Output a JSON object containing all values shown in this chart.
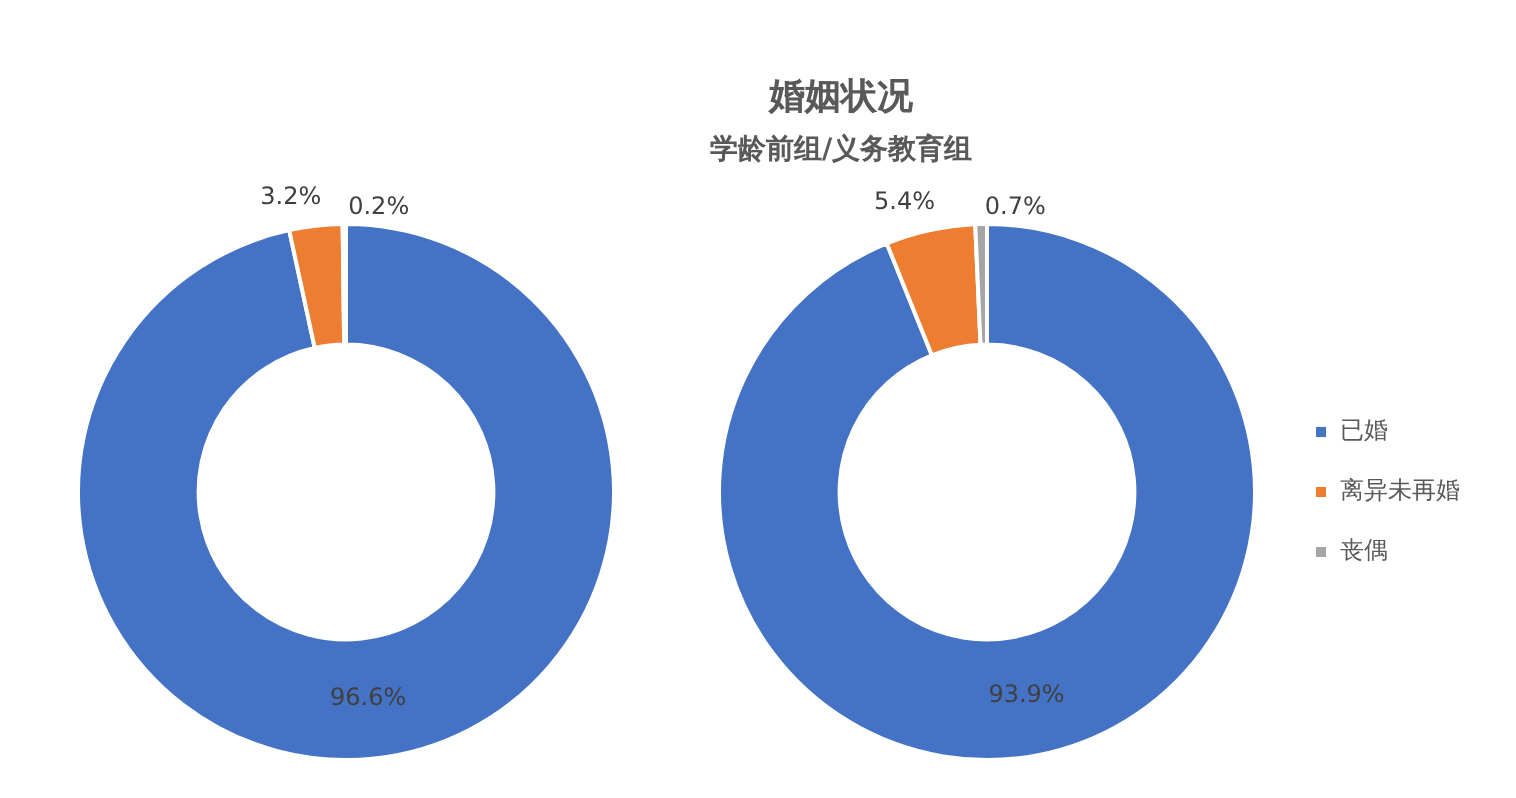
{
  "chart_data": [
    {
      "type": "donut",
      "categories": [
        null,
        null,
        null
      ],
      "values": [
        96.6,
        3.2,
        0.2
      ],
      "value_labels": [
        "96.6%",
        "3.2%",
        "0.2%"
      ],
      "colors": [
        "#4472c4",
        "#ed7d31",
        "#a5a5a5"
      ],
      "legend": false
    },
    {
      "type": "donut",
      "title": "婚姻状况",
      "subtitle": "学龄前组/义务教育组",
      "categories": [
        "已婚",
        "离异未再婚",
        "丧偶"
      ],
      "values": [
        93.9,
        5.4,
        0.7
      ],
      "value_labels": [
        "93.9%",
        "5.4%",
        "0.7%"
      ],
      "colors": [
        "#4472c4",
        "#ed7d31",
        "#a5a5a5"
      ],
      "legend": "right"
    }
  ]
}
